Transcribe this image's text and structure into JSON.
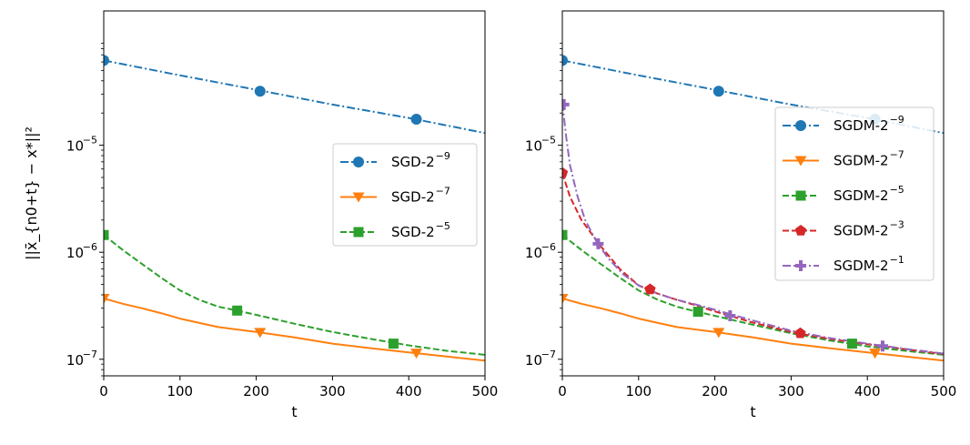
{
  "chart_data": [
    {
      "type": "line",
      "panel": "left",
      "xlabel": "t",
      "ylabel": "||x̄_{n0+t} − x*||²",
      "yscale": "log",
      "xlim": [
        0,
        500
      ],
      "ylim": [
        7e-08,
        0.00018
      ],
      "x_ticks": [
        0,
        100,
        200,
        300,
        400,
        500
      ],
      "y_ticks": [
        {
          "value": 1e-07,
          "base": "10",
          "exp": "−7"
        },
        {
          "value": 1e-06,
          "base": "10",
          "exp": "−6"
        },
        {
          "value": 1e-05,
          "base": "10",
          "exp": "−5"
        }
      ],
      "legend_position": "center-right",
      "series": [
        {
          "name": "SGD-2",
          "exp": "−9",
          "color": "#1f77b4",
          "style": "dashdot",
          "marker": "circle",
          "x": [
            0,
            100,
            200,
            300,
            400,
            500
          ],
          "values": [
            6.2e-05,
            4.5e-05,
            3.3e-05,
            2.4e-05,
            1.8e-05,
            1.3e-05
          ],
          "markers": [
            {
              "x": 0,
              "y": 6.2e-05
            },
            {
              "x": 205,
              "y": 3.2e-05
            },
            {
              "x": 410,
              "y": 1.75e-05
            }
          ]
        },
        {
          "name": "SGD-2",
          "exp": "−7",
          "color": "#ff7f0e",
          "style": "solid",
          "marker": "triangle-down",
          "x": [
            0,
            25,
            50,
            75,
            100,
            150,
            200,
            250,
            300,
            350,
            400,
            450,
            500
          ],
          "values": [
            3.7e-07,
            3.3e-07,
            3e-07,
            2.7e-07,
            2.4e-07,
            2e-07,
            1.8e-07,
            1.6e-07,
            1.4e-07,
            1.27e-07,
            1.16e-07,
            1.06e-07,
            9.7e-08
          ],
          "markers": [
            {
              "x": 0,
              "y": 3.7e-07
            },
            {
              "x": 205,
              "y": 1.78e-07
            },
            {
              "x": 410,
              "y": 1.14e-07
            }
          ]
        },
        {
          "name": "SGD-2",
          "exp": "−5",
          "color": "#2ca02c",
          "style": "dashed",
          "marker": "square",
          "x": [
            0,
            25,
            50,
            75,
            100,
            125,
            150,
            175,
            200,
            250,
            300,
            350,
            400,
            450,
            500
          ],
          "values": [
            1.45e-06,
            1.05e-06,
            7.8e-07,
            5.8e-07,
            4.4e-07,
            3.6e-07,
            3.1e-07,
            2.85e-07,
            2.6e-07,
            2.15e-07,
            1.8e-07,
            1.55e-07,
            1.35e-07,
            1.2e-07,
            1.1e-07
          ],
          "markers": [
            {
              "x": 0,
              "y": 1.45e-06
            },
            {
              "x": 175,
              "y": 2.85e-07
            },
            {
              "x": 380,
              "y": 1.4e-07
            }
          ]
        }
      ]
    },
    {
      "type": "line",
      "panel": "right",
      "xlabel": "t",
      "ylabel": "",
      "yscale": "log",
      "xlim": [
        0,
        500
      ],
      "ylim": [
        7e-08,
        0.00018
      ],
      "x_ticks": [
        0,
        100,
        200,
        300,
        400,
        500
      ],
      "y_ticks": [
        {
          "value": 1e-07,
          "base": "10",
          "exp": "−7"
        },
        {
          "value": 1e-06,
          "base": "10",
          "exp": "−6"
        },
        {
          "value": 1e-05,
          "base": "10",
          "exp": "−5"
        }
      ],
      "legend_position": "right",
      "series": [
        {
          "name": "SGDM-2",
          "exp": "−9",
          "color": "#1f77b4",
          "style": "dashdot",
          "marker": "circle",
          "x": [
            0,
            100,
            200,
            300,
            400,
            500
          ],
          "values": [
            6.2e-05,
            4.5e-05,
            3.3e-05,
            2.4e-05,
            1.8e-05,
            1.3e-05
          ],
          "markers": [
            {
              "x": 0,
              "y": 6.2e-05
            },
            {
              "x": 205,
              "y": 3.2e-05
            },
            {
              "x": 410,
              "y": 1.75e-05
            }
          ]
        },
        {
          "name": "SGDM-2",
          "exp": "−7",
          "color": "#ff7f0e",
          "style": "solid",
          "marker": "triangle-down",
          "x": [
            0,
            25,
            50,
            75,
            100,
            150,
            200,
            250,
            300,
            350,
            400,
            450,
            500
          ],
          "values": [
            3.7e-07,
            3.3e-07,
            3e-07,
            2.7e-07,
            2.4e-07,
            2e-07,
            1.8e-07,
            1.6e-07,
            1.4e-07,
            1.27e-07,
            1.16e-07,
            1.06e-07,
            9.7e-08
          ],
          "markers": [
            {
              "x": 0,
              "y": 3.7e-07
            },
            {
              "x": 205,
              "y": 1.78e-07
            },
            {
              "x": 410,
              "y": 1.14e-07
            }
          ]
        },
        {
          "name": "SGDM-2",
          "exp": "−5",
          "color": "#2ca02c",
          "style": "dashed",
          "marker": "square",
          "x": [
            0,
            25,
            50,
            75,
            100,
            125,
            150,
            175,
            200,
            250,
            300,
            350,
            400,
            450,
            500
          ],
          "values": [
            1.45e-06,
            1.05e-06,
            7.8e-07,
            5.8e-07,
            4.4e-07,
            3.6e-07,
            3.1e-07,
            2.8e-07,
            2.55e-07,
            2.1e-07,
            1.75e-07,
            1.5e-07,
            1.32e-07,
            1.2e-07,
            1.1e-07
          ],
          "markers": [
            {
              "x": 0,
              "y": 1.45e-06
            },
            {
              "x": 178,
              "y": 2.78e-07
            },
            {
              "x": 380,
              "y": 1.4e-07
            }
          ]
        },
        {
          "name": "SGDM-2",
          "exp": "−3",
          "color": "#d62728",
          "style": "dashed",
          "marker": "pentagon",
          "x": [
            0,
            10,
            25,
            50,
            75,
            100,
            125,
            150,
            175,
            200,
            250,
            300,
            350,
            400,
            450,
            500
          ],
          "values": [
            5.5e-06,
            3.3e-06,
            2e-06,
            1.15e-06,
            7e-07,
            4.9e-07,
            4.1e-07,
            3.6e-07,
            3.2e-07,
            2.8e-07,
            2.2e-07,
            1.8e-07,
            1.55e-07,
            1.38e-07,
            1.24e-07,
            1.12e-07
          ],
          "markers": [
            {
              "x": 0,
              "y": 5.5e-06
            },
            {
              "x": 115,
              "y": 4.5e-07
            },
            {
              "x": 312,
              "y": 1.75e-07
            }
          ]
        },
        {
          "name": "SGDM-2",
          "exp": "−1",
          "color": "#9467bd",
          "style": "dashdot",
          "marker": "plus",
          "x": [
            0,
            5,
            10,
            20,
            30,
            45,
            60,
            80,
            100,
            125,
            150,
            175,
            200,
            250,
            300,
            350,
            400,
            450,
            500
          ],
          "values": [
            2.5e-05,
            1.2e-05,
            6.5e-06,
            3.3e-06,
            2e-06,
            1.25e-06,
            8.8e-07,
            6.2e-07,
            4.9e-07,
            4.1e-07,
            3.6e-07,
            3.25e-07,
            2.9e-07,
            2.3e-07,
            1.85e-07,
            1.58e-07,
            1.4e-07,
            1.25e-07,
            1.13e-07
          ],
          "markers": [
            {
              "x": 2,
              "y": 2.4e-05
            },
            {
              "x": 47,
              "y": 1.2e-06
            },
            {
              "x": 220,
              "y": 2.55e-07
            },
            {
              "x": 420,
              "y": 1.33e-07
            }
          ]
        }
      ]
    }
  ]
}
